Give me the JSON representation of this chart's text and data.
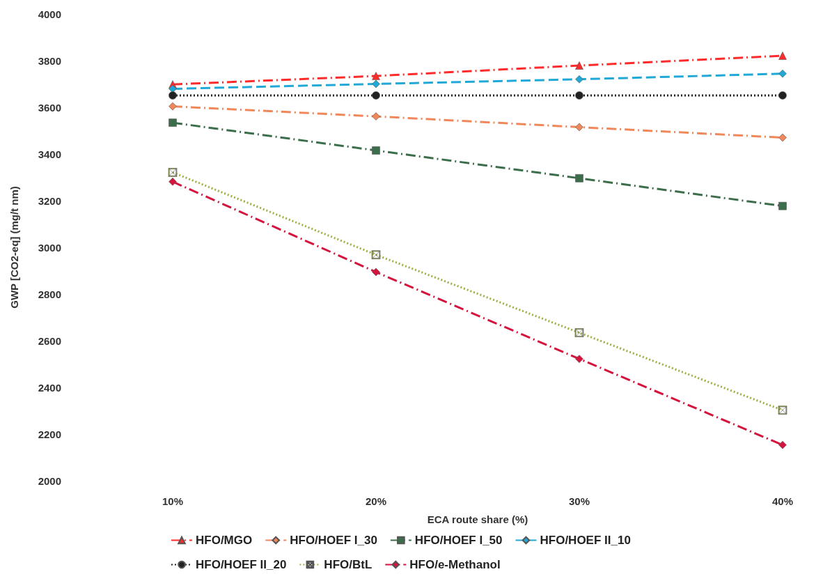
{
  "chart_data": {
    "type": "line",
    "xlabel": "ECA route share (%)",
    "ylabel": "GWP [CO2-eq] (mg/t nm)",
    "categories": [
      "10%",
      "20%",
      "30%",
      "40%"
    ],
    "ylim": [
      2000,
      4000
    ],
    "yticks": [
      2000,
      2200,
      2400,
      2600,
      2800,
      3000,
      3200,
      3400,
      3600,
      3800,
      4000
    ],
    "grid": false,
    "legend": "bottom",
    "series": [
      {
        "name": "HFO/MGO",
        "color": "#ff2a2a",
        "marker": "triangle",
        "line_style": "dashdot",
        "values": [
          3698,
          3734,
          3779,
          3821
        ]
      },
      {
        "name": "HFO/HOEF I_30",
        "color": "#f0875a",
        "marker": "diamond",
        "line_style": "dashdot",
        "values": [
          3604,
          3561,
          3515,
          3470
        ]
      },
      {
        "name": "HFO/HOEF I_50",
        "color": "#3c6e4c",
        "marker": "square",
        "line_style": "dashdot",
        "values": [
          3534,
          3415,
          3296,
          3177
        ]
      },
      {
        "name": "HFO/HOEF II_10",
        "color": "#22a8d6",
        "marker": "diamond",
        "line_style": "dashed",
        "values": [
          3679,
          3700,
          3720,
          3744
        ]
      },
      {
        "name": "HFO/HOEF II_20",
        "color": "#222222",
        "marker": "circle",
        "line_style": "dotted",
        "values": [
          3651,
          3651,
          3651,
          3651
        ]
      },
      {
        "name": "HFO/BtL",
        "color": "#9ab040",
        "marker": "cross",
        "line_style": "dotted",
        "values": [
          3321,
          2968,
          2634,
          2302
        ]
      },
      {
        "name": "HFO/e-Methanol",
        "color": "#d4143c",
        "marker": "diamond",
        "line_style": "dashdot",
        "values": [
          3281,
          2894,
          2522,
          2153
        ]
      }
    ]
  }
}
